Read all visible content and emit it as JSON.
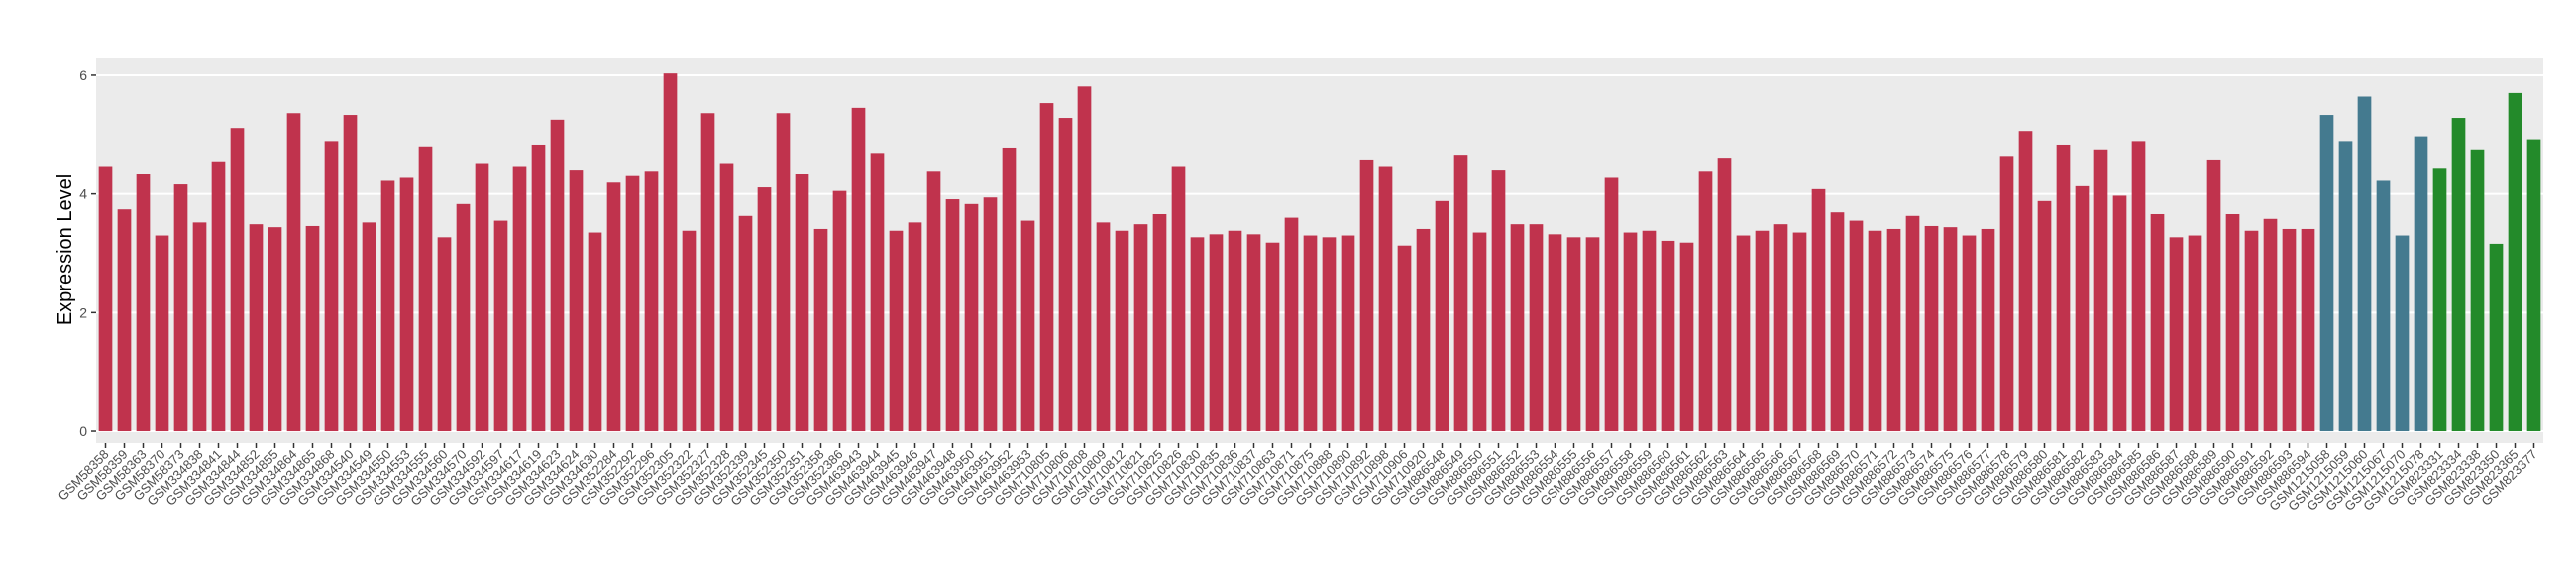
{
  "chart_data": {
    "type": "bar",
    "y_label": "Expression Level",
    "ylim": [
      -0.2,
      6.3
    ],
    "yticks": [
      0,
      2,
      4,
      6
    ],
    "grid": true,
    "categories": [
      "GSM58358",
      "GSM58359",
      "GSM58363",
      "GSM58370",
      "GSM58373",
      "GSM334838",
      "GSM334841",
      "GSM334844",
      "GSM334852",
      "GSM334855",
      "GSM334864",
      "GSM334865",
      "GSM334868",
      "GSM334540",
      "GSM334549",
      "GSM334550",
      "GSM334553",
      "GSM334555",
      "GSM334560",
      "GSM334570",
      "GSM334592",
      "GSM334597",
      "GSM334617",
      "GSM334619",
      "GSM334623",
      "GSM334624",
      "GSM334630",
      "GSM352284",
      "GSM352292",
      "GSM352296",
      "GSM352305",
      "GSM352322",
      "GSM352327",
      "GSM352328",
      "GSM352339",
      "GSM352345",
      "GSM352350",
      "GSM352351",
      "GSM352358",
      "GSM352386",
      "GSM463943",
      "GSM463944",
      "GSM463945",
      "GSM463946",
      "GSM463947",
      "GSM463948",
      "GSM463950",
      "GSM463951",
      "GSM463952",
      "GSM463953",
      "GSM710805",
      "GSM710806",
      "GSM710808",
      "GSM710809",
      "GSM710812",
      "GSM710821",
      "GSM710825",
      "GSM710826",
      "GSM710830",
      "GSM710835",
      "GSM710836",
      "GSM710837",
      "GSM710863",
      "GSM710871",
      "GSM710875",
      "GSM710888",
      "GSM710890",
      "GSM710892",
      "GSM710898",
      "GSM710906",
      "GSM710920",
      "GSM886548",
      "GSM886549",
      "GSM886550",
      "GSM886551",
      "GSM886552",
      "GSM886553",
      "GSM886554",
      "GSM886555",
      "GSM886556",
      "GSM886557",
      "GSM886558",
      "GSM886559",
      "GSM886560",
      "GSM886561",
      "GSM886562",
      "GSM886563",
      "GSM886564",
      "GSM886565",
      "GSM886566",
      "GSM886567",
      "GSM886568",
      "GSM886569",
      "GSM886570",
      "GSM886571",
      "GSM886572",
      "GSM886573",
      "GSM886574",
      "GSM886575",
      "GSM886576",
      "GSM886577",
      "GSM886578",
      "GSM886579",
      "GSM886580",
      "GSM886581",
      "GSM886582",
      "GSM886583",
      "GSM886584",
      "GSM886585",
      "GSM886586",
      "GSM886587",
      "GSM886588",
      "GSM886589",
      "GSM886590",
      "GSM886591",
      "GSM886592",
      "GSM886593",
      "GSM886594",
      "GSM1215058",
      "GSM1215059",
      "GSM1215060",
      "GSM1215067",
      "GSM1215070",
      "GSM1215078",
      "GSM823331",
      "GSM823334",
      "GSM823338",
      "GSM823350",
      "GSM823365",
      "GSM823377"
    ],
    "values": [
      4.47,
      3.74,
      4.33,
      3.3,
      4.16,
      3.52,
      4.55,
      5.11,
      3.49,
      3.44,
      5.36,
      3.46,
      4.89,
      5.33,
      3.52,
      4.22,
      4.27,
      4.8,
      3.27,
      3.83,
      4.52,
      3.55,
      4.47,
      4.83,
      5.25,
      4.41,
      3.35,
      4.19,
      4.3,
      4.39,
      6.03,
      3.38,
      5.36,
      4.52,
      3.63,
      4.11,
      5.36,
      4.33,
      3.41,
      4.05,
      5.45,
      4.69,
      3.38,
      3.52,
      4.39,
      3.91,
      3.83,
      3.94,
      4.78,
      3.55,
      5.53,
      5.28,
      5.81,
      3.52,
      3.38,
      3.49,
      3.66,
      4.47,
      3.27,
      3.32,
      3.38,
      3.32,
      3.18,
      3.6,
      3.3,
      3.27,
      3.3,
      4.58,
      4.47,
      3.13,
      3.41,
      3.88,
      4.66,
      3.35,
      4.41,
      3.49,
      3.49,
      3.32,
      3.27,
      3.27,
      4.27,
      3.35,
      3.38,
      3.21,
      3.18,
      4.39,
      4.61,
      3.3,
      3.38,
      3.49,
      3.35,
      4.08,
      3.69,
      3.55,
      3.38,
      3.41,
      3.63,
      3.46,
      3.44,
      3.3,
      3.41,
      4.64,
      5.06,
      3.88,
      4.83,
      4.13,
      4.75,
      3.97,
      4.89,
      3.66,
      3.27,
      3.3,
      4.58,
      3.66,
      3.38,
      3.58,
      3.41,
      3.41,
      5.33,
      4.89,
      5.64,
      4.22,
      3.3,
      4.97,
      4.44,
      5.28,
      4.75,
      3.16,
      5.7,
      4.92
    ],
    "colors": [
      "#c0334d",
      "#c0334d",
      "#c0334d",
      "#c0334d",
      "#c0334d",
      "#c0334d",
      "#c0334d",
      "#c0334d",
      "#c0334d",
      "#c0334d",
      "#c0334d",
      "#c0334d",
      "#c0334d",
      "#c0334d",
      "#c0334d",
      "#c0334d",
      "#c0334d",
      "#c0334d",
      "#c0334d",
      "#c0334d",
      "#c0334d",
      "#c0334d",
      "#c0334d",
      "#c0334d",
      "#c0334d",
      "#c0334d",
      "#c0334d",
      "#c0334d",
      "#c0334d",
      "#c0334d",
      "#c0334d",
      "#c0334d",
      "#c0334d",
      "#c0334d",
      "#c0334d",
      "#c0334d",
      "#c0334d",
      "#c0334d",
      "#c0334d",
      "#c0334d",
      "#c0334d",
      "#c0334d",
      "#c0334d",
      "#c0334d",
      "#c0334d",
      "#c0334d",
      "#c0334d",
      "#c0334d",
      "#c0334d",
      "#c0334d",
      "#c0334d",
      "#c0334d",
      "#c0334d",
      "#c0334d",
      "#c0334d",
      "#c0334d",
      "#c0334d",
      "#c0334d",
      "#c0334d",
      "#c0334d",
      "#c0334d",
      "#c0334d",
      "#c0334d",
      "#c0334d",
      "#c0334d",
      "#c0334d",
      "#c0334d",
      "#c0334d",
      "#c0334d",
      "#c0334d",
      "#c0334d",
      "#c0334d",
      "#c0334d",
      "#c0334d",
      "#c0334d",
      "#c0334d",
      "#c0334d",
      "#c0334d",
      "#c0334d",
      "#c0334d",
      "#c0334d",
      "#c0334d",
      "#c0334d",
      "#c0334d",
      "#c0334d",
      "#c0334d",
      "#c0334d",
      "#c0334d",
      "#c0334d",
      "#c0334d",
      "#c0334d",
      "#c0334d",
      "#c0334d",
      "#c0334d",
      "#c0334d",
      "#c0334d",
      "#c0334d",
      "#c0334d",
      "#c0334d",
      "#c0334d",
      "#c0334d",
      "#c0334d",
      "#c0334d",
      "#c0334d",
      "#c0334d",
      "#c0334d",
      "#c0334d",
      "#c0334d",
      "#c0334d",
      "#c0334d",
      "#c0334d",
      "#c0334d",
      "#c0334d",
      "#c0334d",
      "#c0334d",
      "#c0334d",
      "#c0334d",
      "#c0334d",
      "#447a8f",
      "#447a8f",
      "#447a8f",
      "#447a8f",
      "#447a8f",
      "#447a8f",
      "#238a2a",
      "#238a2a",
      "#238a2a",
      "#238a2a",
      "#238a2a",
      "#238a2a"
    ]
  }
}
